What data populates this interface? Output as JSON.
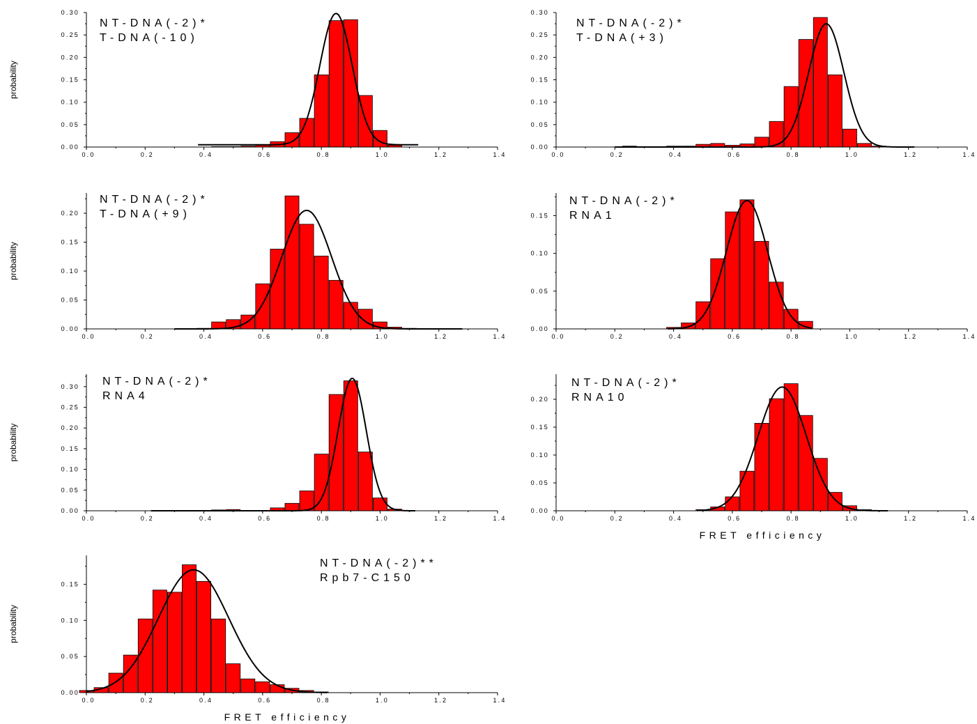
{
  "figure": {
    "background": "#ffffff",
    "bar_color": "#ff0000",
    "bar_edge_color": "#000000",
    "fit_color": "#000000"
  },
  "chart_data": [
    {
      "type": "bar",
      "annotation": [
        "NT-DNA(-2)*",
        "T-DNA(-10)"
      ],
      "ylabel": "probability",
      "xlabel": "",
      "xlim": [
        0,
        1.4
      ],
      "ylim": [
        0,
        0.3
      ],
      "xticks": [
        "0.0",
        "0.2",
        "0.4",
        "0.6",
        "0.8",
        "1.0",
        "1.2",
        "1.4"
      ],
      "yticks": [
        "0.00",
        "0.05",
        "0.10",
        "0.15",
        "0.20",
        "0.25",
        "0.30"
      ],
      "bin_width": 0.05,
      "x": [
        0.4,
        0.45,
        0.5,
        0.55,
        0.6,
        0.65,
        0.7,
        0.75,
        0.8,
        0.85,
        0.9,
        0.95,
        1.0,
        1.05,
        1.1
      ],
      "values": [
        0.0,
        0.001,
        0.001,
        0.002,
        0.004,
        0.012,
        0.032,
        0.064,
        0.161,
        0.282,
        0.284,
        0.115,
        0.037,
        0.004,
        0.0
      ],
      "fit": {
        "type": "gaussian",
        "center": 0.85,
        "sigma": 0.055,
        "amplitude": 0.293,
        "offset": 0.005,
        "range": [
          0.38,
          1.13
        ]
      }
    },
    {
      "type": "bar",
      "annotation": [
        "NT-DNA(-2)*",
        "T-DNA(+3)"
      ],
      "ylabel": "",
      "xlabel": "",
      "xlim": [
        0,
        1.4
      ],
      "ylim": [
        0,
        0.3
      ],
      "xticks": [
        "0.0",
        "0.2",
        "0.4",
        "0.6",
        "0.8",
        "1.0",
        "1.2",
        "1.4"
      ],
      "yticks": [
        "0.00",
        "0.05",
        "0.10",
        "0.15",
        "0.20",
        "0.25",
        "0.30"
      ],
      "bin_width": 0.05,
      "x": [
        0.25,
        0.3,
        0.35,
        0.4,
        0.45,
        0.5,
        0.55,
        0.6,
        0.65,
        0.7,
        0.75,
        0.8,
        0.85,
        0.9,
        0.95,
        1.0,
        1.05,
        1.1,
        1.15
      ],
      "values": [
        0.002,
        0.001,
        0.001,
        0.002,
        0.002,
        0.006,
        0.008,
        0.004,
        0.007,
        0.022,
        0.057,
        0.135,
        0.24,
        0.289,
        0.161,
        0.04,
        0.008,
        0.002,
        0.0
      ],
      "fit": {
        "type": "gaussian",
        "center": 0.92,
        "sigma": 0.06,
        "amplitude": 0.275,
        "offset": 0.0,
        "range": [
          0.2,
          1.22
        ]
      }
    },
    {
      "type": "bar",
      "annotation": [
        "NT-DNA(-2)*",
        "T-DNA(+9)"
      ],
      "ylabel": "probability",
      "xlabel": "",
      "xlim": [
        0,
        1.4
      ],
      "ylim": [
        0,
        0.235
      ],
      "xticks": [
        "0.0",
        "0.2",
        "0.4",
        "0.6",
        "0.8",
        "1.0",
        "1.2",
        "1.4"
      ],
      "yticks": [
        "0.00",
        "0.05",
        "0.10",
        "0.15",
        "0.20"
      ],
      "bin_width": 0.05,
      "x": [
        0.4,
        0.45,
        0.5,
        0.55,
        0.6,
        0.65,
        0.7,
        0.75,
        0.8,
        0.85,
        0.9,
        0.95,
        1.0,
        1.05,
        1.1,
        1.15
      ],
      "values": [
        0.001,
        0.012,
        0.016,
        0.024,
        0.078,
        0.138,
        0.23,
        0.181,
        0.126,
        0.084,
        0.046,
        0.034,
        0.012,
        0.003,
        0.001,
        0.0
      ],
      "fit": {
        "type": "gaussian",
        "center": 0.75,
        "sigma": 0.085,
        "amplitude": 0.205,
        "offset": 0.0,
        "range": [
          0.3,
          1.28
        ]
      }
    },
    {
      "type": "bar",
      "annotation": [
        "NT-DNA(-2)*",
        "RNA1"
      ],
      "ylabel": "",
      "xlabel": "",
      "xlim": [
        0,
        1.4
      ],
      "ylim": [
        0,
        0.18
      ],
      "xticks": [
        "0.0",
        "0.2",
        "0.4",
        "0.6",
        "0.8",
        "1.0",
        "1.2",
        "1.4"
      ],
      "yticks": [
        "0.00",
        "0.05",
        "0.10",
        "0.15"
      ],
      "bin_width": 0.05,
      "x": [
        0.4,
        0.45,
        0.5,
        0.55,
        0.6,
        0.65,
        0.7,
        0.75,
        0.8,
        0.85
      ],
      "values": [
        0.002,
        0.008,
        0.036,
        0.093,
        0.155,
        0.171,
        0.116,
        0.062,
        0.026,
        0.01
      ],
      "fit": {
        "type": "gaussian",
        "center": 0.65,
        "sigma": 0.07,
        "amplitude": 0.17,
        "offset": 0.0,
        "range": [
          0.38,
          0.87
        ]
      }
    },
    {
      "type": "bar",
      "annotation": [
        "NT-DNA(-2)*",
        "RNA4"
      ],
      "ylabel": "probability",
      "xlabel": "",
      "xlim": [
        0,
        1.4
      ],
      "ylim": [
        0,
        0.33
      ],
      "xticks": [
        "0.0",
        "0.2",
        "0.4",
        "0.6",
        "0.8",
        "1.0",
        "1.2",
        "1.4"
      ],
      "yticks": [
        "0.00",
        "0.05",
        "0.10",
        "0.15",
        "0.20",
        "0.25",
        "0.30"
      ],
      "bin_width": 0.05,
      "x": [
        0.45,
        0.5,
        0.55,
        0.6,
        0.65,
        0.7,
        0.75,
        0.8,
        0.85,
        0.9,
        0.95,
        1.0,
        1.05
      ],
      "values": [
        0.002,
        0.003,
        0.001,
        0.001,
        0.007,
        0.018,
        0.048,
        0.137,
        0.281,
        0.314,
        0.142,
        0.031,
        0.004
      ],
      "fit": {
        "type": "gaussian",
        "center": 0.905,
        "sigma": 0.048,
        "amplitude": 0.32,
        "offset": 0.0,
        "range": [
          0.22,
          1.12
        ]
      }
    },
    {
      "type": "bar",
      "annotation": [
        "NT-DNA(-2)*",
        "RNA10"
      ],
      "ylabel": "",
      "xlabel": "FRET efficiency",
      "xlim": [
        0,
        1.4
      ],
      "ylim": [
        0,
        0.245
      ],
      "xticks": [
        "0.0",
        "0.2",
        "0.4",
        "0.6",
        "0.8",
        "1.0",
        "1.2",
        "1.4"
      ],
      "yticks": [
        "0.00",
        "0.05",
        "0.10",
        "0.15",
        "0.20"
      ],
      "bin_width": 0.05,
      "x": [
        0.5,
        0.55,
        0.6,
        0.65,
        0.7,
        0.75,
        0.8,
        0.85,
        0.9,
        0.95,
        1.0,
        1.05
      ],
      "values": [
        0.002,
        0.007,
        0.025,
        0.071,
        0.157,
        0.201,
        0.228,
        0.171,
        0.094,
        0.033,
        0.009,
        0.002
      ],
      "fit": {
        "type": "gaussian",
        "center": 0.77,
        "sigma": 0.082,
        "amplitude": 0.222,
        "offset": 0.0,
        "range": [
          0.48,
          1.13
        ]
      }
    },
    {
      "type": "bar",
      "annotation": [
        "NT-DNA(-2)**",
        "Rpb7-C150"
      ],
      "ylabel": "probability",
      "xlabel": "FRET efficiency",
      "xlim": [
        0,
        1.4
      ],
      "ylim": [
        0,
        0.19
      ],
      "xticks": [
        "0.0",
        "0.2",
        "0.4",
        "0.6",
        "0.8",
        "1.0",
        "1.2",
        "1.4"
      ],
      "yticks": [
        "0.00",
        "0.05",
        "0.10",
        "0.15"
      ],
      "bin_width": 0.05,
      "x": [
        0.0,
        0.05,
        0.1,
        0.15,
        0.2,
        0.25,
        0.3,
        0.35,
        0.4,
        0.45,
        0.5,
        0.55,
        0.6,
        0.65,
        0.7,
        0.75,
        0.8
      ],
      "values": [
        0.003,
        0.007,
        0.027,
        0.052,
        0.102,
        0.142,
        0.139,
        0.177,
        0.154,
        0.102,
        0.04,
        0.019,
        0.015,
        0.011,
        0.006,
        0.003,
        0.001
      ],
      "fit": {
        "type": "gaussian",
        "center": 0.365,
        "sigma": 0.12,
        "amplitude": 0.17,
        "offset": 0.0,
        "range": [
          0.0,
          0.82
        ]
      }
    }
  ]
}
